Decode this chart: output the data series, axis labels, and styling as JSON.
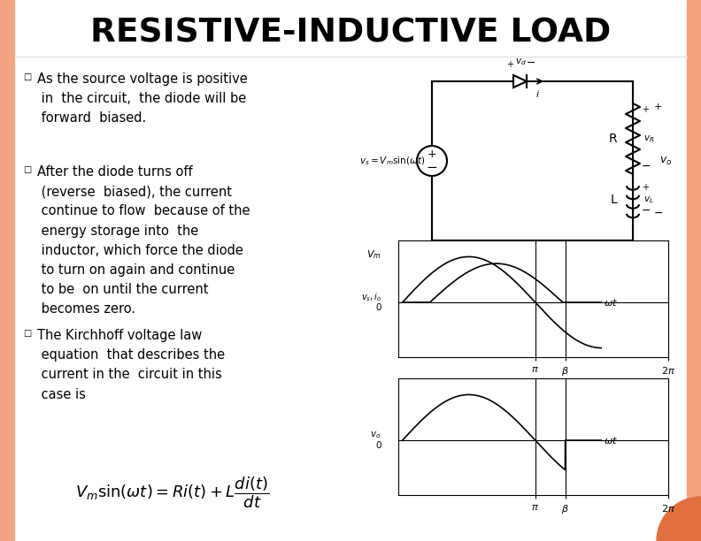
{
  "title": "RESISTIVE-INDUCTIVE LOAD",
  "slide_bg": "#FEF0EB",
  "content_bg": "#FFFFFF",
  "border_color": "#F4A480",
  "accent_color": "#E07040",
  "text_color": "#000000",
  "bullet1": "As the source voltage is positive\n in  the circuit,  the diode will be\n forward  biased.",
  "bullet2": "After the diode turns off\n (reverse  biased), the current\n continue to flow  because of the\n energy storage into  the\n inductor, which force the diode\n to turn on again and continue\n to be  on until the current\n becomes zero.",
  "bullet3": "The Kirchhoff voltage law\n equation  that describes the\n current in the  circuit in this\n case is",
  "phi": 0.65,
  "beta": 3.85,
  "vm": 1.0
}
